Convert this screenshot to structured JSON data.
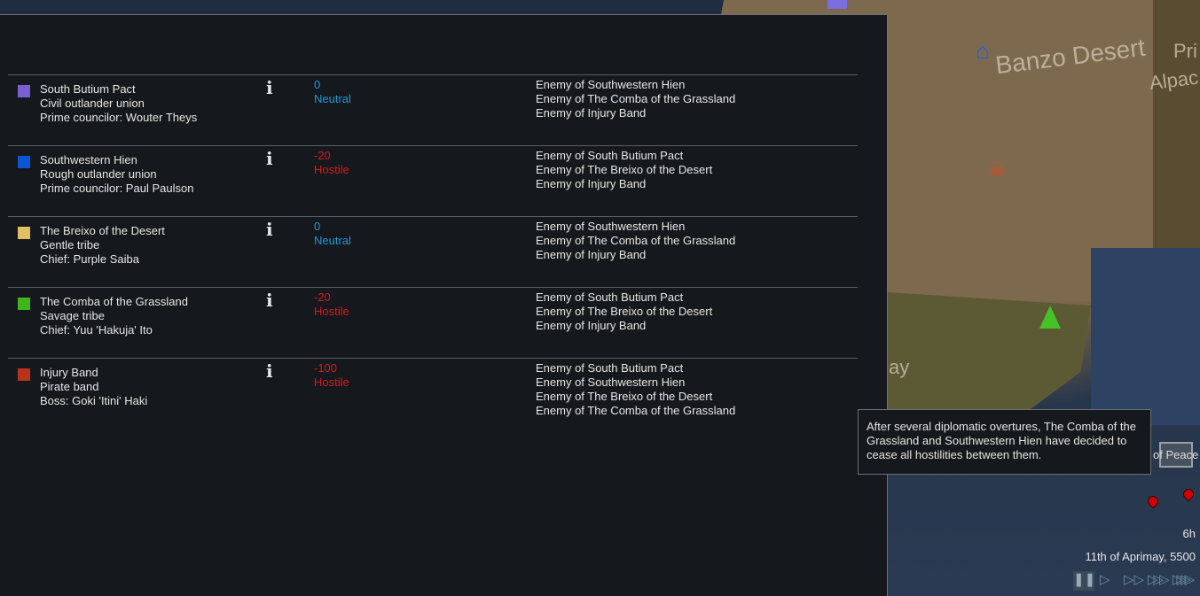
{
  "map": {
    "labels": [
      "Banzo Desert",
      "Pri",
      "Alpac",
      "ay"
    ],
    "peace_label": "of Peace",
    "time_hours": "6h",
    "date": "11th of Aprimay, 5500"
  },
  "speed_controls": [
    "pause",
    "normal",
    "fast",
    "superfast",
    "ultrafast"
  ],
  "factions": [
    {
      "name": "South Butium Pact",
      "type": "Civil outlander union",
      "leader": "Prime councilor: Wouter Theys",
      "color": "#7a5fd0",
      "goodwill": "0",
      "status": "Neutral",
      "relations": [
        "Enemy of Southwestern Hien",
        "Enemy of The Comba of the Grassland",
        "Enemy of Injury Band"
      ]
    },
    {
      "name": "Southwestern Hien",
      "type": "Rough outlander union",
      "leader": "Prime councilor: Paul Paulson",
      "color": "#0b55d8",
      "goodwill": "-20",
      "status": "Hostile",
      "relations": [
        "Enemy of South Butium Pact",
        "Enemy of The Breixo of the Desert",
        "Enemy of Injury Band"
      ]
    },
    {
      "name": "The Breixo of the Desert",
      "type": "Gentle tribe",
      "leader": "Chief: Purple Saiba",
      "color": "#e0c060",
      "goodwill": "0",
      "status": "Neutral",
      "relations": [
        "Enemy of Southwestern Hien",
        "Enemy of The Comba of the Grassland",
        "Enemy of Injury Band"
      ]
    },
    {
      "name": "The Comba of the Grassland",
      "type": "Savage tribe",
      "leader": "Chief: Yuu 'Hakuja' Ito",
      "color": "#3fb51c",
      "goodwill": "-20",
      "status": "Hostile",
      "relations": [
        "Enemy of South Butium Pact",
        "Enemy of The Breixo of the Desert",
        "Enemy of Injury Band"
      ]
    },
    {
      "name": "Injury Band",
      "type": "Pirate band",
      "leader": "Boss: Goki 'Itini' Haki",
      "color": "#b8321c",
      "goodwill": "-100",
      "status": "Hostile",
      "relations": [
        "Enemy of South Butium Pact",
        "Enemy of Southwestern Hien",
        "Enemy of The Breixo of the Desert",
        "Enemy of The Comba of the Grassland"
      ]
    }
  ],
  "tooltip": {
    "text": "After several diplomatic overtures, The Comba of the Grassland and Southwestern Hien have decided to cease all hostilities between them."
  }
}
